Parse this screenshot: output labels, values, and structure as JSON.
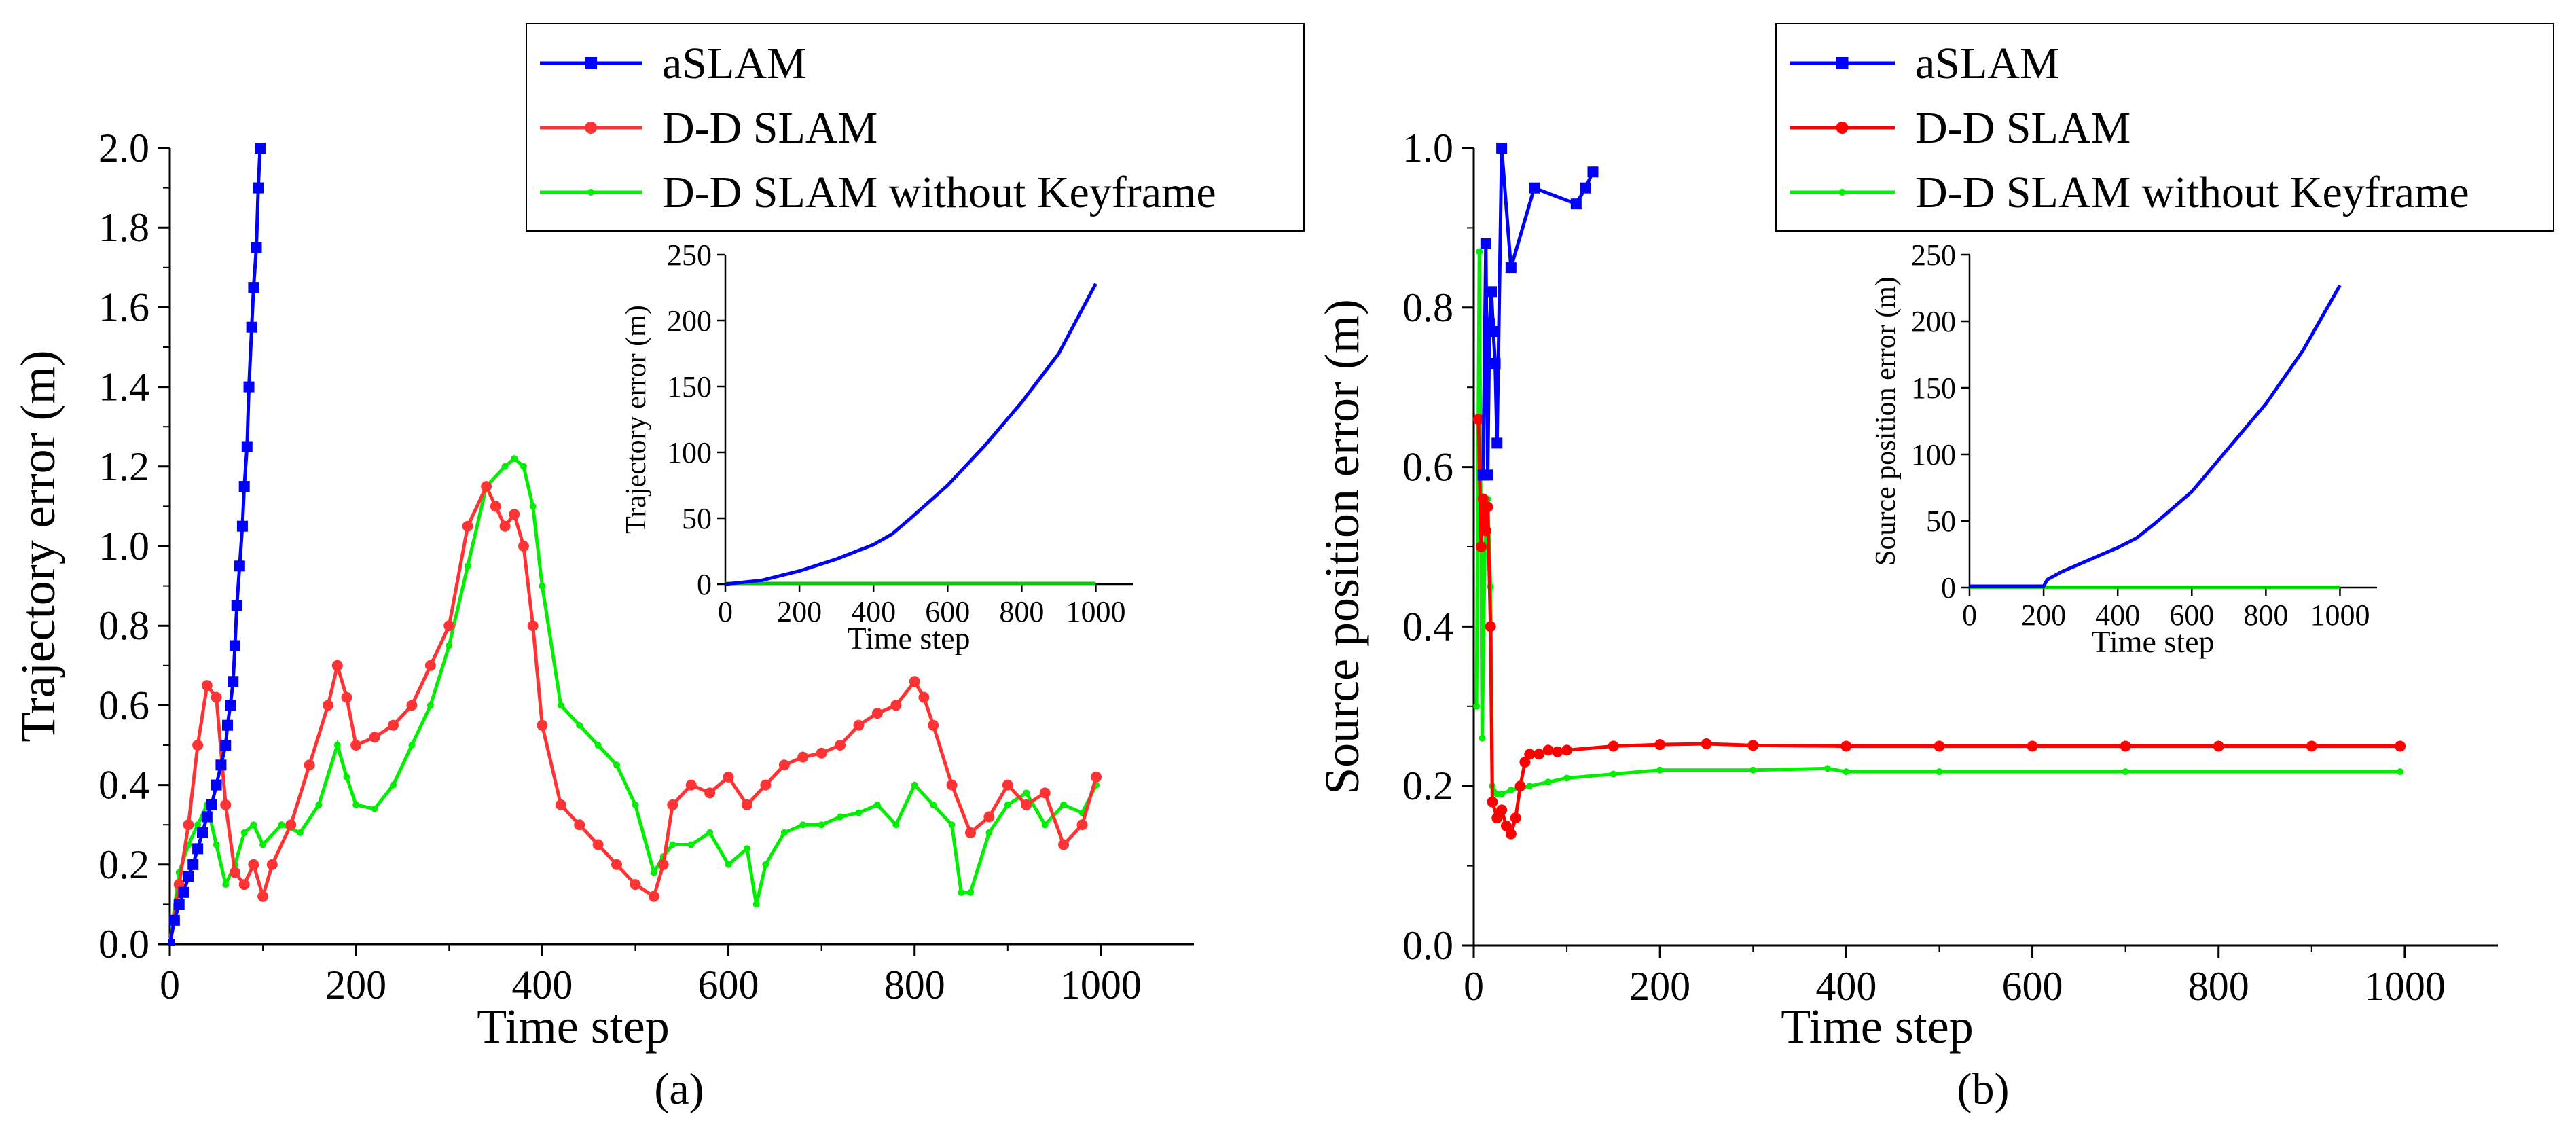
{
  "chart_data": [
    {
      "id": "a",
      "type": "line",
      "caption": "(a)",
      "xlabel": "Time step",
      "ylabel": "Trajectory error (m)",
      "xlim": [
        0,
        1100
      ],
      "ylim": [
        0,
        2.0
      ],
      "xticks": [
        0,
        200,
        400,
        600,
        800,
        1000
      ],
      "yticks": [
        0.0,
        0.2,
        0.4,
        0.6,
        0.8,
        1.0,
        1.2,
        1.4,
        1.6,
        1.8,
        2.0
      ],
      "ytick_labels": [
        "0.0",
        "0.2",
        "0.4",
        "0.6",
        "0.8",
        "1.0",
        "1.2",
        "1.4",
        "1.6",
        "1.8",
        "2.0"
      ],
      "legend": [
        "aSLAM",
        "D-D SLAM",
        "D-D SLAM without Keyframe"
      ],
      "series": [
        {
          "name": "aSLAM",
          "color": "#0000ff",
          "marker": "square",
          "x": [
            0,
            5,
            10,
            15,
            20,
            25,
            30,
            35,
            40,
            45,
            50,
            55,
            60,
            62,
            65,
            68,
            70,
            72,
            75,
            78,
            80,
            83,
            85,
            88,
            90,
            93,
            95,
            97
          ],
          "y": [
            0.0,
            0.06,
            0.1,
            0.13,
            0.17,
            0.2,
            0.24,
            0.28,
            0.32,
            0.35,
            0.4,
            0.45,
            0.5,
            0.55,
            0.6,
            0.66,
            0.75,
            0.85,
            0.95,
            1.05,
            1.15,
            1.25,
            1.4,
            1.55,
            1.65,
            1.75,
            1.9,
            2.0
          ]
        },
        {
          "name": "D-D SLAM",
          "color": "#ff3333",
          "marker": "circle",
          "x": [
            0,
            10,
            20,
            30,
            40,
            50,
            60,
            70,
            80,
            90,
            100,
            110,
            130,
            150,
            170,
            180,
            190,
            200,
            220,
            240,
            260,
            280,
            300,
            320,
            340,
            350,
            360,
            370,
            380,
            390,
            400,
            420,
            440,
            460,
            480,
            500,
            520,
            530,
            540,
            560,
            580,
            600,
            620,
            640,
            660,
            680,
            700,
            720,
            740,
            760,
            780,
            800,
            810,
            820,
            840,
            860,
            880,
            900,
            920,
            940,
            960,
            980,
            995
          ],
          "y": [
            0.0,
            0.15,
            0.3,
            0.5,
            0.65,
            0.62,
            0.35,
            0.18,
            0.15,
            0.2,
            0.12,
            0.2,
            0.3,
            0.45,
            0.6,
            0.7,
            0.62,
            0.5,
            0.52,
            0.55,
            0.6,
            0.7,
            0.8,
            1.05,
            1.15,
            1.1,
            1.05,
            1.08,
            1.0,
            0.8,
            0.55,
            0.35,
            0.3,
            0.25,
            0.2,
            0.15,
            0.12,
            0.2,
            0.35,
            0.4,
            0.38,
            0.42,
            0.35,
            0.4,
            0.45,
            0.47,
            0.48,
            0.5,
            0.55,
            0.58,
            0.6,
            0.66,
            0.62,
            0.55,
            0.4,
            0.28,
            0.32,
            0.4,
            0.35,
            0.38,
            0.25,
            0.3,
            0.42
          ]
        },
        {
          "name": "D-D SLAM without Keyframe",
          "color": "#00ee00",
          "marker": "dot",
          "x": [
            0,
            10,
            20,
            30,
            40,
            50,
            60,
            70,
            80,
            90,
            100,
            120,
            140,
            160,
            180,
            190,
            200,
            220,
            240,
            260,
            280,
            300,
            320,
            340,
            360,
            370,
            380,
            390,
            400,
            420,
            440,
            460,
            480,
            500,
            520,
            530,
            540,
            560,
            580,
            600,
            620,
            630,
            640,
            660,
            680,
            700,
            720,
            740,
            760,
            780,
            800,
            820,
            840,
            850,
            860,
            880,
            900,
            920,
            940,
            960,
            980,
            995
          ],
          "y": [
            0.0,
            0.18,
            0.25,
            0.3,
            0.35,
            0.25,
            0.15,
            0.2,
            0.28,
            0.3,
            0.25,
            0.3,
            0.28,
            0.35,
            0.5,
            0.42,
            0.35,
            0.34,
            0.4,
            0.5,
            0.6,
            0.75,
            0.95,
            1.15,
            1.2,
            1.22,
            1.2,
            1.1,
            0.9,
            0.6,
            0.55,
            0.5,
            0.45,
            0.35,
            0.18,
            0.22,
            0.25,
            0.25,
            0.28,
            0.2,
            0.24,
            0.1,
            0.2,
            0.28,
            0.3,
            0.3,
            0.32,
            0.33,
            0.35,
            0.3,
            0.4,
            0.35,
            0.3,
            0.13,
            0.13,
            0.28,
            0.35,
            0.38,
            0.3,
            0.35,
            0.33,
            0.4
          ]
        }
      ],
      "inset": {
        "xlabel": "Time step",
        "ylabel": "Trajectory error (m)",
        "xlim": [
          0,
          1100
        ],
        "ylim": [
          0,
          250
        ],
        "xticks": [
          0,
          200,
          400,
          600,
          800,
          1000
        ],
        "yticks": [
          0,
          50,
          100,
          150,
          200,
          250
        ],
        "series": [
          {
            "name": "aSLAM",
            "color": "#0000ff",
            "x": [
              0,
              100,
              200,
              300,
              400,
              450,
              500,
              600,
              700,
              800,
              900,
              1000
            ],
            "y": [
              0,
              3,
              10,
              19,
              30,
              38,
              50,
              75,
              105,
              138,
              175,
              228
            ]
          },
          {
            "name": "D-D SLAM",
            "color": "#00cc00",
            "x": [
              0,
              1000
            ],
            "y": [
              0.5,
              0.5
            ]
          }
        ]
      }
    },
    {
      "id": "b",
      "type": "line",
      "caption": "(b)",
      "xlabel": "Time step",
      "ylabel": "Source position error (m)",
      "xlim": [
        0,
        1100
      ],
      "ylim": [
        0,
        1.0
      ],
      "xticks": [
        0,
        200,
        400,
        600,
        800,
        1000
      ],
      "yticks": [
        0.0,
        0.2,
        0.4,
        0.6,
        0.8,
        1.0
      ],
      "ytick_labels": [
        "0.0",
        "0.2",
        "0.4",
        "0.6",
        "0.8",
        "1.0"
      ],
      "legend": [
        "aSLAM",
        "D-D SLAM",
        "D-D SLAM without Keyframe"
      ],
      "series": [
        {
          "name": "aSLAM",
          "color": "#0000ff",
          "marker": "square",
          "x": [
            10,
            13,
            15,
            17,
            19,
            21,
            23,
            25,
            30,
            40,
            65,
            110,
            120,
            128
          ],
          "y": [
            0.59,
            0.88,
            0.59,
            0.78,
            0.82,
            0.77,
            0.73,
            0.63,
            1.0,
            0.85,
            0.95,
            0.93,
            0.95,
            0.97
          ]
        },
        {
          "name": "D-D SLAM",
          "color": "#ff0000",
          "marker": "circle",
          "x": [
            5,
            8,
            10,
            13,
            15,
            18,
            20,
            25,
            30,
            35,
            40,
            45,
            50,
            55,
            60,
            70,
            80,
            90,
            100,
            150,
            200,
            250,
            300,
            400,
            500,
            600,
            700,
            800,
            900,
            995
          ],
          "y": [
            0.66,
            0.5,
            0.56,
            0.52,
            0.55,
            0.4,
            0.18,
            0.16,
            0.17,
            0.15,
            0.14,
            0.16,
            0.2,
            0.23,
            0.24,
            0.24,
            0.245,
            0.243,
            0.245,
            0.25,
            0.252,
            0.253,
            0.251,
            0.25,
            0.25,
            0.25,
            0.25,
            0.25,
            0.25,
            0.25
          ]
        },
        {
          "name": "D-D SLAM without Keyframe",
          "color": "#00ee00",
          "marker": "dot",
          "x": [
            3,
            6,
            9,
            12,
            15,
            18,
            20,
            25,
            30,
            40,
            60,
            80,
            100,
            150,
            200,
            300,
            380,
            400,
            500,
            700,
            995
          ],
          "y": [
            0.3,
            0.87,
            0.26,
            0.5,
            0.56,
            0.45,
            0.2,
            0.19,
            0.19,
            0.195,
            0.2,
            0.205,
            0.21,
            0.215,
            0.22,
            0.22,
            0.222,
            0.218,
            0.218,
            0.218,
            0.218
          ]
        }
      ],
      "inset": {
        "xlabel": "Time step",
        "ylabel": "Source position error (m)",
        "xlim": [
          0,
          1100
        ],
        "ylim": [
          0,
          250
        ],
        "xticks": [
          0,
          200,
          400,
          600,
          800,
          1000
        ],
        "yticks": [
          0,
          50,
          100,
          150,
          200,
          250
        ],
        "series": [
          {
            "name": "aSLAM",
            "color": "#0000ff",
            "x": [
              0,
              200,
              210,
              250,
              300,
              350,
              400,
              450,
              500,
              600,
              700,
              800,
              900,
              1000
            ],
            "y": [
              1,
              1,
              6,
              12,
              18,
              24,
              30,
              37,
              48,
              72,
              105,
              138,
              178,
              227
            ]
          },
          {
            "name": "D-D SLAM",
            "color": "#00cc00",
            "x": [
              0,
              1000
            ],
            "y": [
              0.3,
              0.3
            ]
          }
        ]
      }
    }
  ]
}
